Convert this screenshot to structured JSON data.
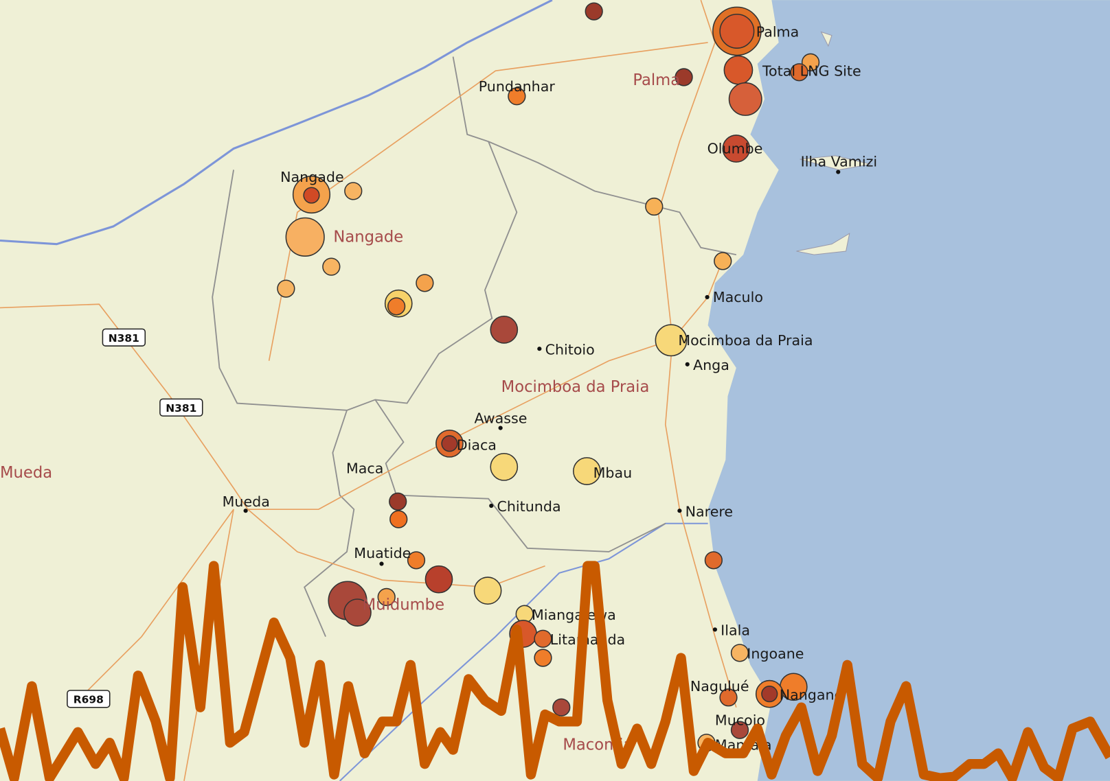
{
  "map": {
    "places": [
      "Palma",
      "Total LNG Site",
      "Pundanhar",
      "Olumbe",
      "Ilha Vamizi",
      "Nangade",
      "Maculo",
      "Chitoio",
      "Mocimboa da Praia",
      "Anga",
      "Awasse",
      "Diaca",
      "Maca",
      "Mbau",
      "Chitunda",
      "Mueda",
      "Narere",
      "Muatide",
      "Miangalewa",
      "Litamanda",
      "Ilala",
      "Ingoane",
      "Nagulué",
      "Nangane",
      "Mucojo",
      "Mantaia"
    ],
    "districts": [
      "Palma",
      "Nangade",
      "Mocimboa da Praia",
      "Mueda",
      "Muidumbe",
      "Macomia"
    ],
    "roads": [
      "N381",
      "N381",
      "R698"
    ]
  },
  "chart_data": {
    "type": "line",
    "color": "#c85a00",
    "ylim": [
      0,
      320
    ],
    "x": [
      0,
      20,
      45,
      70,
      110,
      135,
      155,
      175,
      195,
      220,
      240,
      258,
      283,
      302,
      325,
      345,
      368,
      387,
      410,
      430,
      452,
      472,
      492,
      515,
      540,
      560,
      580,
      600,
      622,
      640,
      662,
      685,
      708,
      730,
      750,
      770,
      790,
      815,
      830,
      840,
      858,
      878,
      900,
      920,
      940,
      962,
      980,
      1000,
      1025,
      1050,
      1070,
      1090,
      1110,
      1132,
      1155,
      1175,
      1197,
      1218,
      1240,
      1258,
      1280,
      1305,
      1328,
      1348,
      1370,
      1390,
      1410,
      1430,
      1452,
      1475,
      1495,
      1515,
      1540,
      1568
    ],
    "xlim": [
      0,
      1568
    ],
    "values": [
      74,
      4,
      134,
      4,
      69,
      24,
      54,
      4,
      149,
      84,
      4,
      274,
      104,
      304,
      54,
      69,
      154,
      224,
      174,
      54,
      164,
      9,
      134,
      39,
      84,
      84,
      164,
      24,
      69,
      44,
      144,
      114,
      99,
      214,
      9,
      94,
      84,
      84,
      304,
      304,
      114,
      24,
      74,
      24,
      84,
      174,
      14,
      54,
      39,
      39,
      74,
      9,
      64,
      104,
      14,
      64,
      164,
      24,
      4,
      84,
      134,
      9,
      4,
      6,
      24,
      24,
      39,
      4,
      69,
      19,
      4,
      74,
      84,
      34
    ]
  }
}
